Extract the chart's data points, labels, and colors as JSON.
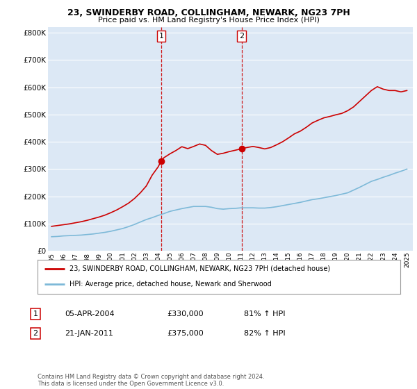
{
  "title": "23, SWINDERBY ROAD, COLLINGHAM, NEWARK, NG23 7PH",
  "subtitle": "Price paid vs. HM Land Registry's House Price Index (HPI)",
  "legend_line1": "23, SWINDERBY ROAD, COLLINGHAM, NEWARK, NG23 7PH (detached house)",
  "legend_line2": "HPI: Average price, detached house, Newark and Sherwood",
  "annotation1_label": "1",
  "annotation1_date": "05-APR-2004",
  "annotation1_price": "£330,000",
  "annotation1_hpi": "81% ↑ HPI",
  "annotation2_label": "2",
  "annotation2_date": "21-JAN-2011",
  "annotation2_price": "£375,000",
  "annotation2_hpi": "82% ↑ HPI",
  "footer": "Contains HM Land Registry data © Crown copyright and database right 2024.\nThis data is licensed under the Open Government Licence v3.0.",
  "sale1_x": 2004.26,
  "sale1_y": 330000,
  "sale2_x": 2011.05,
  "sale2_y": 375000,
  "hpi_color": "#7db9d8",
  "price_color": "#cc0000",
  "dashed_line_color": "#cc0000",
  "background_color": "#ffffff",
  "plot_bg_color": "#dce8f5",
  "ylim": [
    0,
    820000
  ],
  "xlim_start": 1994.7,
  "xlim_end": 2025.5,
  "yticks": [
    0,
    100000,
    200000,
    300000,
    400000,
    500000,
    600000,
    700000,
    800000
  ],
  "hpi_data_x": [
    1995,
    1995.5,
    1996,
    1996.5,
    1997,
    1997.5,
    1998,
    1998.5,
    1999,
    1999.5,
    2000,
    2000.5,
    2001,
    2001.5,
    2002,
    2002.5,
    2003,
    2003.5,
    2004,
    2004.5,
    2005,
    2005.5,
    2006,
    2006.5,
    2007,
    2007.5,
    2008,
    2008.5,
    2009,
    2009.5,
    2010,
    2010.5,
    2011,
    2011.5,
    2012,
    2012.5,
    2013,
    2013.5,
    2014,
    2014.5,
    2015,
    2015.5,
    2016,
    2016.5,
    2017,
    2017.5,
    2018,
    2018.5,
    2019,
    2019.5,
    2020,
    2020.5,
    2021,
    2021.5,
    2022,
    2022.5,
    2023,
    2023.5,
    2024,
    2024.5,
    2025
  ],
  "hpi_data_y": [
    52000,
    53000,
    55000,
    56000,
    57000,
    58000,
    60000,
    62000,
    65000,
    68000,
    72000,
    77000,
    82000,
    89000,
    97000,
    106000,
    115000,
    122000,
    130000,
    137000,
    145000,
    150000,
    155000,
    159000,
    163000,
    163000,
    163000,
    160000,
    155000,
    153000,
    155000,
    156000,
    158000,
    158000,
    158000,
    157000,
    157000,
    159000,
    162000,
    166000,
    170000,
    174000,
    178000,
    183000,
    188000,
    191000,
    195000,
    199000,
    203000,
    208000,
    213000,
    223000,
    233000,
    244000,
    255000,
    262000,
    270000,
    277000,
    285000,
    292000,
    300000
  ],
  "price_data_x": [
    1995,
    1995.5,
    1996,
    1996.5,
    1997,
    1997.5,
    1998,
    1998.5,
    1999,
    1999.5,
    2000,
    2000.5,
    2001,
    2001.5,
    2002,
    2002.5,
    2003,
    2003.5,
    2004,
    2004.26,
    2004.5,
    2005,
    2005.5,
    2006,
    2006.5,
    2007,
    2007.5,
    2008,
    2008.5,
    2009,
    2009.5,
    2010,
    2010.5,
    2011,
    2011.05,
    2011.5,
    2012,
    2012.5,
    2013,
    2013.5,
    2014,
    2014.5,
    2015,
    2015.5,
    2016,
    2016.5,
    2017,
    2017.5,
    2018,
    2018.5,
    2019,
    2019.5,
    2020,
    2020.5,
    2021,
    2021.5,
    2022,
    2022.5,
    2023,
    2023.5,
    2024,
    2024.5,
    2025
  ],
  "price_data_y": [
    90000,
    93000,
    96000,
    99000,
    103000,
    107000,
    112000,
    118000,
    124000,
    131000,
    140000,
    150000,
    162000,
    175000,
    192000,
    213000,
    238000,
    278000,
    308000,
    330000,
    342000,
    356000,
    368000,
    382000,
    375000,
    383000,
    392000,
    387000,
    368000,
    354000,
    358000,
    364000,
    369000,
    374000,
    375000,
    379000,
    383000,
    379000,
    374000,
    379000,
    389000,
    400000,
    414000,
    429000,
    439000,
    453000,
    469000,
    479000,
    488000,
    493000,
    499000,
    504000,
    514000,
    528000,
    548000,
    568000,
    588000,
    602000,
    593000,
    588000,
    588000,
    583000,
    588000
  ]
}
